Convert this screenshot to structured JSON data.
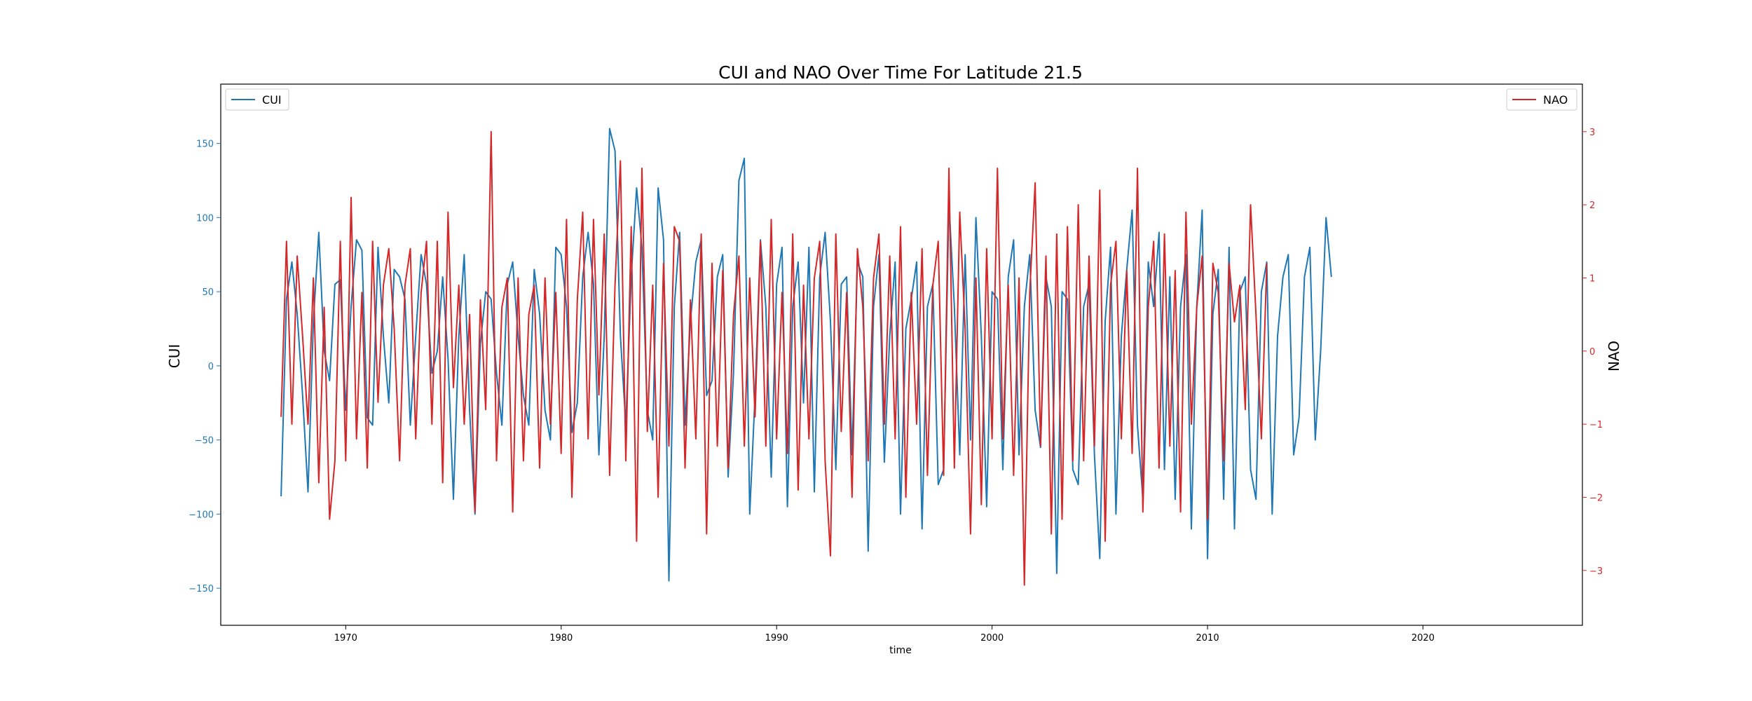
{
  "chart_data": {
    "type": "line",
    "title": "CUI and NAO Over Time For Latitude 21.5",
    "xlabel": "time",
    "ylabel_left": "CUI",
    "ylabel_right": "NAO",
    "xlim": [
      1964.2,
      2027.4
    ],
    "ylim_left": [
      -175,
      190
    ],
    "ylim_right": [
      -3.75,
      3.65
    ],
    "x_ticks": [
      1970,
      1980,
      1990,
      2000,
      2010,
      2020
    ],
    "y_left_ticks": [
      -150,
      -100,
      -50,
      0,
      50,
      100,
      150
    ],
    "y_left_tick_labels": [
      "−150",
      "−100",
      "−50",
      "0",
      "50",
      "100",
      "150"
    ],
    "y_right_ticks": [
      -3,
      -2,
      -1,
      0,
      1,
      2,
      3
    ],
    "y_right_tick_labels": [
      "−3",
      "−2",
      "−1",
      "0",
      "1",
      "2",
      "3"
    ],
    "grid": false,
    "x_start": 1967.0,
    "x_step": 0.25,
    "series": [
      {
        "name": "CUI",
        "axis": "left",
        "color": "#1f77b4",
        "legend_position": "top-left",
        "values": [
          -88,
          45,
          70,
          35,
          -20,
          -85,
          30,
          90,
          10,
          -10,
          55,
          58,
          -30,
          40,
          85,
          78,
          -35,
          -40,
          80,
          20,
          -25,
          65,
          60,
          45,
          -40,
          20,
          75,
          55,
          -5,
          10,
          60,
          5,
          -90,
          20,
          75,
          -30,
          -100,
          15,
          50,
          45,
          -5,
          -40,
          55,
          70,
          20,
          -20,
          -40,
          65,
          35,
          -30,
          -50,
          80,
          75,
          40,
          -45,
          -25,
          60,
          90,
          55,
          -60,
          20,
          160,
          145,
          20,
          -40,
          60,
          120,
          80,
          -30,
          -50,
          120,
          85,
          -145,
          40,
          90,
          -40,
          30,
          70,
          85,
          -20,
          -10,
          60,
          75,
          -75,
          -5,
          125,
          140,
          -100,
          -20,
          85,
          40,
          -75,
          55,
          80,
          -95,
          40,
          70,
          -25,
          80,
          -85,
          60,
          90,
          30,
          -70,
          55,
          60,
          -60,
          70,
          60,
          -125,
          40,
          75,
          -65,
          20,
          70,
          -100,
          25,
          45,
          70,
          -110,
          40,
          55,
          -80,
          -70,
          110,
          40,
          -60,
          75,
          -50,
          100,
          20,
          -95,
          50,
          45,
          -70,
          60,
          85,
          -60,
          40,
          75,
          -30,
          -55,
          60,
          40,
          -140,
          50,
          45,
          -70,
          -80,
          40,
          55,
          -60,
          -130,
          30,
          80,
          -100,
          20,
          65,
          105,
          -40,
          -90,
          70,
          40,
          90,
          -70,
          60,
          -90,
          40,
          75,
          -110,
          40,
          105,
          -130,
          35,
          65,
          -90,
          80,
          -110,
          50,
          60,
          -70,
          -90,
          50,
          70,
          -100,
          20,
          60,
          75,
          -60,
          -35,
          60,
          80,
          -50,
          10,
          100,
          60
        ],
        "values_note_removed": ""
      },
      {
        "name": "NAO",
        "axis": "right",
        "color": "#d62728",
        "legend_position": "top-right",
        "values": [
          -0.9,
          1.5,
          -1.0,
          1.3,
          0.2,
          -1.0,
          1.0,
          -1.8,
          0.6,
          -2.3,
          -1.5,
          1.5,
          -1.5,
          2.1,
          -1.2,
          0.8,
          -1.6,
          1.5,
          -0.7,
          0.9,
          1.4,
          0.3,
          -1.5,
          0.9,
          1.4,
          -1.2,
          0.8,
          1.5,
          -1.0,
          1.5,
          -1.8,
          1.9,
          -0.5,
          0.9,
          -1.0,
          0.5,
          -2.2,
          0.7,
          -0.8,
          3.0,
          -1.5,
          0.6,
          1.0,
          -2.2,
          1.0,
          -1.5,
          0.5,
          0.9,
          -1.6,
          1.0,
          -1.0,
          0.8,
          -1.4,
          1.8,
          -2.0,
          0.7,
          1.9,
          -1.2,
          1.8,
          -0.6,
          1.6,
          -1.7,
          0.9,
          2.6,
          -1.5,
          1.7,
          -2.6,
          2.5,
          -1.1,
          0.9,
          -2.0,
          1.2,
          -1.3,
          1.7,
          1.5,
          -1.6,
          0.7,
          -1.2,
          1.6,
          -2.5,
          1.2,
          -1.3,
          1.1,
          -1.6,
          0.5,
          1.3,
          -1.3,
          1.0,
          -0.9,
          1.5,
          -1.3,
          1.8,
          -1.2,
          0.8,
          -1.4,
          1.6,
          -1.9,
          0.9,
          -1.2,
          1.0,
          1.5,
          -1.5,
          -2.8,
          1.6,
          -1.1,
          0.8,
          -2.0,
          1.4,
          0.6,
          -1.5,
          1.0,
          1.6,
          -1.0,
          1.3,
          -1.2,
          1.7,
          -2.0,
          0.8,
          -1.0,
          1.4,
          -1.7,
          0.9,
          1.5,
          -1.7,
          2.5,
          -1.6,
          1.9,
          0.3,
          -2.5,
          1.0,
          -2.1,
          1.4,
          -1.2,
          2.5,
          -1.2,
          0.9,
          -1.7,
          1.0,
          -3.2,
          0.8,
          2.3,
          -1.3,
          1.3,
          -2.5,
          1.6,
          -2.3,
          1.7,
          -1.5,
          2.0,
          -1.5,
          1.3,
          -1.3,
          2.2,
          -2.6,
          0.9,
          1.5,
          -1.2,
          1.1,
          -1.4,
          2.5,
          -2.2,
          0.6,
          1.5,
          -1.6,
          1.6,
          -1.3,
          1.1,
          -2.2,
          1.9,
          -1.0,
          0.6,
          1.3,
          -2.3,
          1.2,
          0.8,
          -1.5,
          1.2,
          0.4,
          0.9,
          -0.8,
          2.0,
          0.5,
          -1.2,
          1.2
        ]
      }
    ]
  }
}
